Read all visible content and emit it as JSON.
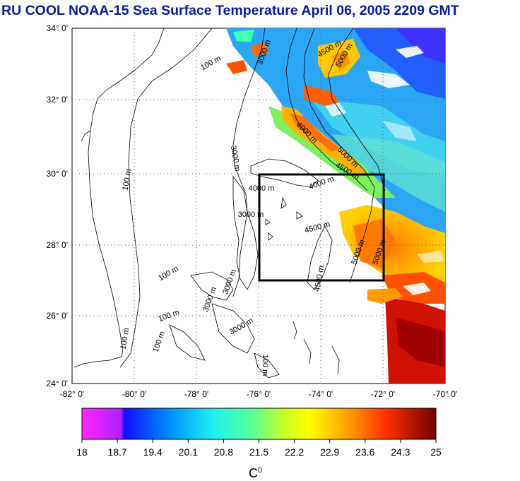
{
  "title": "RU COOL  NOAA-15 Sea Surface Temperature April 06, 2005 2209 GMT",
  "map": {
    "lon_ticks": [
      "-82° 0'",
      "-80° 0'",
      "-78° 0'",
      "-76° 0'",
      "-74° 0'",
      "-72° 0'",
      "-70° 0'"
    ],
    "lat_ticks": [
      "34° 0'",
      "32° 0'",
      "30° 0'",
      "28° 0'",
      "26° 0'",
      "24° 0'"
    ],
    "contour_labels": [
      "100 m",
      "100 m",
      "100 m",
      "100 m",
      "100 m",
      "100 m",
      "100 m",
      "3000 m",
      "3000 m",
      "3000 m",
      "3000 m",
      "3000 m",
      "4000 m",
      "4000 m",
      "4000 m",
      "4500 m",
      "4500 m",
      "4500 m",
      "4500 m",
      "5000 m",
      "5000 m",
      "5000 m",
      "5000 m",
      "3000 m"
    ],
    "colors": {
      "land_bg": "#ffffff",
      "box": "#000000"
    }
  },
  "colorbar": {
    "ticks": [
      "18",
      "18.7",
      "19.4",
      "20.1",
      "20.8",
      "21.5",
      "22.2",
      "22.9",
      "23.6",
      "24.3",
      "25"
    ],
    "unit": "C",
    "unit_sup": "0",
    "colors": [
      "#ff20ff",
      "#1010ff",
      "#00a0ff",
      "#20ffd0",
      "#80ff40",
      "#ffff00",
      "#ffa000",
      "#ff4000",
      "#a00000",
      "#600000"
    ]
  }
}
